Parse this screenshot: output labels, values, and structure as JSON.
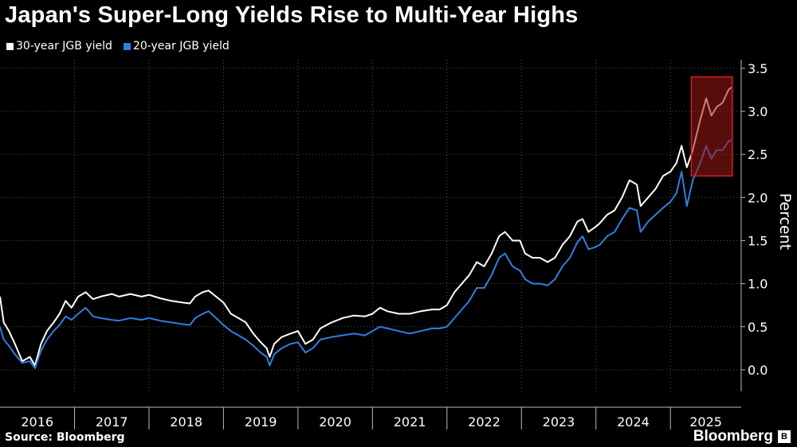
{
  "chart_data": {
    "type": "line",
    "title": "Japan's Super-Long Yields Rise to Multi-Year Highs",
    "ylabel": "Percent",
    "xlabel": "",
    "ylim": [
      -0.25,
      3.6
    ],
    "xlim": [
      2016.0,
      2025.95
    ],
    "yticks": [
      0.0,
      0.5,
      1.0,
      1.5,
      2.0,
      2.5,
      3.0,
      3.5
    ],
    "ytick_labels": [
      "0.0",
      "0.5",
      "1.0",
      "1.5",
      "2.0",
      "2.5",
      "3.0",
      "3.5"
    ],
    "xtick_labels": [
      "2016",
      "2017",
      "2018",
      "2019",
      "2020",
      "2021",
      "2022",
      "2023",
      "2024",
      "2025"
    ],
    "grid": true,
    "legend_position": "top-left",
    "highlight": {
      "x": [
        2025.28,
        2025.83
      ],
      "y": [
        2.25,
        3.4
      ],
      "color": "#a01818"
    },
    "series": [
      {
        "name": "30-year JGB yield",
        "color": "#ffffff",
        "points": [
          [
            2016.0,
            0.85
          ],
          [
            2016.05,
            0.55
          ],
          [
            2016.12,
            0.45
          ],
          [
            2016.2,
            0.3
          ],
          [
            2016.3,
            0.1
          ],
          [
            2016.4,
            0.15
          ],
          [
            2016.47,
            0.05
          ],
          [
            2016.55,
            0.3
          ],
          [
            2016.63,
            0.45
          ],
          [
            2016.72,
            0.55
          ],
          [
            2016.8,
            0.65
          ],
          [
            2016.88,
            0.8
          ],
          [
            2016.96,
            0.72
          ],
          [
            2017.05,
            0.85
          ],
          [
            2017.15,
            0.9
          ],
          [
            2017.25,
            0.82
          ],
          [
            2017.35,
            0.85
          ],
          [
            2017.5,
            0.88
          ],
          [
            2017.6,
            0.85
          ],
          [
            2017.75,
            0.88
          ],
          [
            2017.9,
            0.85
          ],
          [
            2018.0,
            0.87
          ],
          [
            2018.15,
            0.83
          ],
          [
            2018.3,
            0.8
          ],
          [
            2018.45,
            0.78
          ],
          [
            2018.55,
            0.77
          ],
          [
            2018.62,
            0.85
          ],
          [
            2018.72,
            0.9
          ],
          [
            2018.8,
            0.92
          ],
          [
            2018.9,
            0.85
          ],
          [
            2019.0,
            0.78
          ],
          [
            2019.1,
            0.65
          ],
          [
            2019.2,
            0.6
          ],
          [
            2019.3,
            0.55
          ],
          [
            2019.4,
            0.42
          ],
          [
            2019.5,
            0.32
          ],
          [
            2019.58,
            0.25
          ],
          [
            2019.62,
            0.15
          ],
          [
            2019.68,
            0.3
          ],
          [
            2019.78,
            0.38
          ],
          [
            2019.9,
            0.42
          ],
          [
            2020.0,
            0.45
          ],
          [
            2020.1,
            0.3
          ],
          [
            2020.2,
            0.35
          ],
          [
            2020.3,
            0.48
          ],
          [
            2020.45,
            0.55
          ],
          [
            2020.6,
            0.6
          ],
          [
            2020.75,
            0.63
          ],
          [
            2020.9,
            0.62
          ],
          [
            2021.0,
            0.65
          ],
          [
            2021.1,
            0.72
          ],
          [
            2021.2,
            0.68
          ],
          [
            2021.35,
            0.65
          ],
          [
            2021.5,
            0.65
          ],
          [
            2021.65,
            0.68
          ],
          [
            2021.8,
            0.7
          ],
          [
            2021.9,
            0.7
          ],
          [
            2022.0,
            0.75
          ],
          [
            2022.1,
            0.9
          ],
          [
            2022.2,
            1.0
          ],
          [
            2022.3,
            1.1
          ],
          [
            2022.4,
            1.25
          ],
          [
            2022.5,
            1.2
          ],
          [
            2022.6,
            1.35
          ],
          [
            2022.7,
            1.55
          ],
          [
            2022.78,
            1.6
          ],
          [
            2022.88,
            1.5
          ],
          [
            2022.98,
            1.5
          ],
          [
            2023.05,
            1.35
          ],
          [
            2023.15,
            1.3
          ],
          [
            2023.25,
            1.3
          ],
          [
            2023.35,
            1.25
          ],
          [
            2023.45,
            1.3
          ],
          [
            2023.55,
            1.45
          ],
          [
            2023.65,
            1.55
          ],
          [
            2023.75,
            1.72
          ],
          [
            2023.82,
            1.75
          ],
          [
            2023.9,
            1.6
          ],
          [
            2023.98,
            1.65
          ],
          [
            2024.05,
            1.7
          ],
          [
            2024.15,
            1.8
          ],
          [
            2024.25,
            1.85
          ],
          [
            2024.35,
            2.0
          ],
          [
            2024.45,
            2.2
          ],
          [
            2024.55,
            2.15
          ],
          [
            2024.6,
            1.9
          ],
          [
            2024.7,
            2.0
          ],
          [
            2024.8,
            2.1
          ],
          [
            2024.9,
            2.25
          ],
          [
            2025.0,
            2.3
          ],
          [
            2025.08,
            2.4
          ],
          [
            2025.15,
            2.6
          ],
          [
            2025.22,
            2.35
          ],
          [
            2025.3,
            2.55
          ],
          [
            2025.4,
            2.9
          ],
          [
            2025.48,
            3.15
          ],
          [
            2025.55,
            2.95
          ],
          [
            2025.62,
            3.05
          ],
          [
            2025.7,
            3.1
          ],
          [
            2025.78,
            3.25
          ],
          [
            2025.82,
            3.28
          ]
        ]
      },
      {
        "name": "20-year JGB yield",
        "color": "#2f7fe0",
        "points": [
          [
            2016.0,
            0.5
          ],
          [
            2016.05,
            0.35
          ],
          [
            2016.12,
            0.28
          ],
          [
            2016.2,
            0.18
          ],
          [
            2016.3,
            0.08
          ],
          [
            2016.4,
            0.1
          ],
          [
            2016.47,
            0.02
          ],
          [
            2016.55,
            0.22
          ],
          [
            2016.63,
            0.35
          ],
          [
            2016.72,
            0.45
          ],
          [
            2016.8,
            0.52
          ],
          [
            2016.88,
            0.62
          ],
          [
            2016.96,
            0.58
          ],
          [
            2017.05,
            0.65
          ],
          [
            2017.15,
            0.72
          ],
          [
            2017.25,
            0.62
          ],
          [
            2017.35,
            0.6
          ],
          [
            2017.5,
            0.58
          ],
          [
            2017.6,
            0.57
          ],
          [
            2017.75,
            0.6
          ],
          [
            2017.9,
            0.58
          ],
          [
            2018.0,
            0.6
          ],
          [
            2018.15,
            0.57
          ],
          [
            2018.3,
            0.55
          ],
          [
            2018.45,
            0.53
          ],
          [
            2018.55,
            0.52
          ],
          [
            2018.62,
            0.6
          ],
          [
            2018.72,
            0.65
          ],
          [
            2018.8,
            0.68
          ],
          [
            2018.9,
            0.6
          ],
          [
            2019.0,
            0.52
          ],
          [
            2019.1,
            0.45
          ],
          [
            2019.2,
            0.4
          ],
          [
            2019.3,
            0.35
          ],
          [
            2019.4,
            0.28
          ],
          [
            2019.5,
            0.2
          ],
          [
            2019.58,
            0.15
          ],
          [
            2019.62,
            0.05
          ],
          [
            2019.68,
            0.18
          ],
          [
            2019.78,
            0.25
          ],
          [
            2019.9,
            0.3
          ],
          [
            2020.0,
            0.32
          ],
          [
            2020.1,
            0.2
          ],
          [
            2020.2,
            0.25
          ],
          [
            2020.3,
            0.35
          ],
          [
            2020.45,
            0.38
          ],
          [
            2020.6,
            0.4
          ],
          [
            2020.75,
            0.42
          ],
          [
            2020.9,
            0.4
          ],
          [
            2021.0,
            0.45
          ],
          [
            2021.1,
            0.5
          ],
          [
            2021.2,
            0.48
          ],
          [
            2021.35,
            0.45
          ],
          [
            2021.5,
            0.42
          ],
          [
            2021.65,
            0.45
          ],
          [
            2021.8,
            0.48
          ],
          [
            2021.9,
            0.48
          ],
          [
            2022.0,
            0.5
          ],
          [
            2022.1,
            0.6
          ],
          [
            2022.2,
            0.7
          ],
          [
            2022.3,
            0.8
          ],
          [
            2022.4,
            0.95
          ],
          [
            2022.5,
            0.95
          ],
          [
            2022.6,
            1.1
          ],
          [
            2022.7,
            1.3
          ],
          [
            2022.78,
            1.35
          ],
          [
            2022.88,
            1.2
          ],
          [
            2022.98,
            1.15
          ],
          [
            2023.05,
            1.05
          ],
          [
            2023.15,
            1.0
          ],
          [
            2023.25,
            1.0
          ],
          [
            2023.35,
            0.98
          ],
          [
            2023.45,
            1.05
          ],
          [
            2023.55,
            1.2
          ],
          [
            2023.65,
            1.3
          ],
          [
            2023.75,
            1.48
          ],
          [
            2023.82,
            1.55
          ],
          [
            2023.9,
            1.4
          ],
          [
            2023.98,
            1.42
          ],
          [
            2024.05,
            1.45
          ],
          [
            2024.15,
            1.55
          ],
          [
            2024.25,
            1.6
          ],
          [
            2024.35,
            1.75
          ],
          [
            2024.45,
            1.88
          ],
          [
            2024.55,
            1.85
          ],
          [
            2024.6,
            1.6
          ],
          [
            2024.7,
            1.72
          ],
          [
            2024.8,
            1.8
          ],
          [
            2024.9,
            1.88
          ],
          [
            2025.0,
            1.95
          ],
          [
            2025.08,
            2.05
          ],
          [
            2025.15,
            2.3
          ],
          [
            2025.22,
            1.9
          ],
          [
            2025.3,
            2.2
          ],
          [
            2025.4,
            2.4
          ],
          [
            2025.48,
            2.6
          ],
          [
            2025.55,
            2.45
          ],
          [
            2025.62,
            2.55
          ],
          [
            2025.7,
            2.55
          ],
          [
            2025.78,
            2.65
          ],
          [
            2025.82,
            2.67
          ]
        ]
      }
    ]
  },
  "source": "Source: Bloomberg",
  "brand": {
    "name": "Bloomberg",
    "icon": "B"
  },
  "colors": {
    "background": "#000000",
    "grid": "#555555",
    "axis": "#bbbbbb"
  }
}
